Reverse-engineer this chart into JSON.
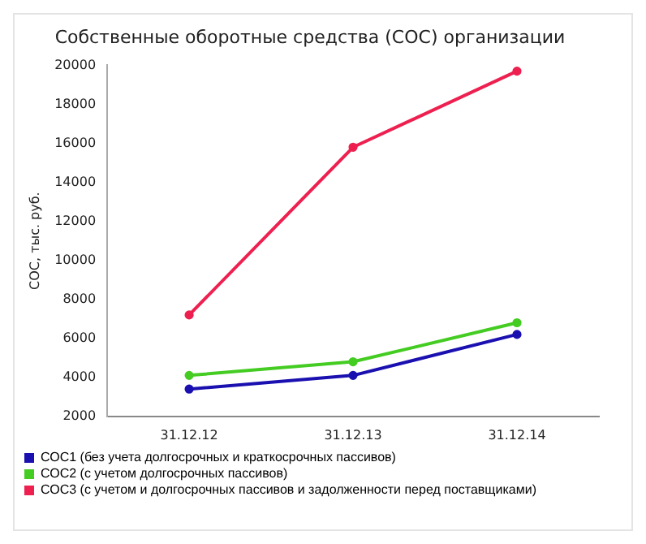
{
  "chart_data": {
    "type": "line",
    "title": "Собственные оборотные средства (СОС) организации",
    "ylabel": "СОС, тыс. руб.",
    "categories": [
      "31.12.12",
      "31.12.13",
      "31.12.14"
    ],
    "series": [
      {
        "name": "СОС1 (без учета долгосрочных и краткосрочных пассивов)",
        "color": "#1a10b0",
        "values": [
          3400,
          4100,
          6200
        ]
      },
      {
        "name": "СОС2 (с учетом долгосрочных пассивов)",
        "color": "#44cc22",
        "values": [
          4100,
          4800,
          6800
        ]
      },
      {
        "name": "СОС3 (с учетом и долгосрочных пассивов и задолженности перед поставщиками)",
        "color": "#ee2050",
        "values": [
          7200,
          15800,
          19700
        ]
      }
    ],
    "ylim": [
      2000,
      20000
    ],
    "yticks": [
      2000,
      4000,
      6000,
      8000,
      10000,
      12000,
      14000,
      16000,
      18000,
      20000
    ],
    "legend": "bottom",
    "marker": "circle"
  }
}
